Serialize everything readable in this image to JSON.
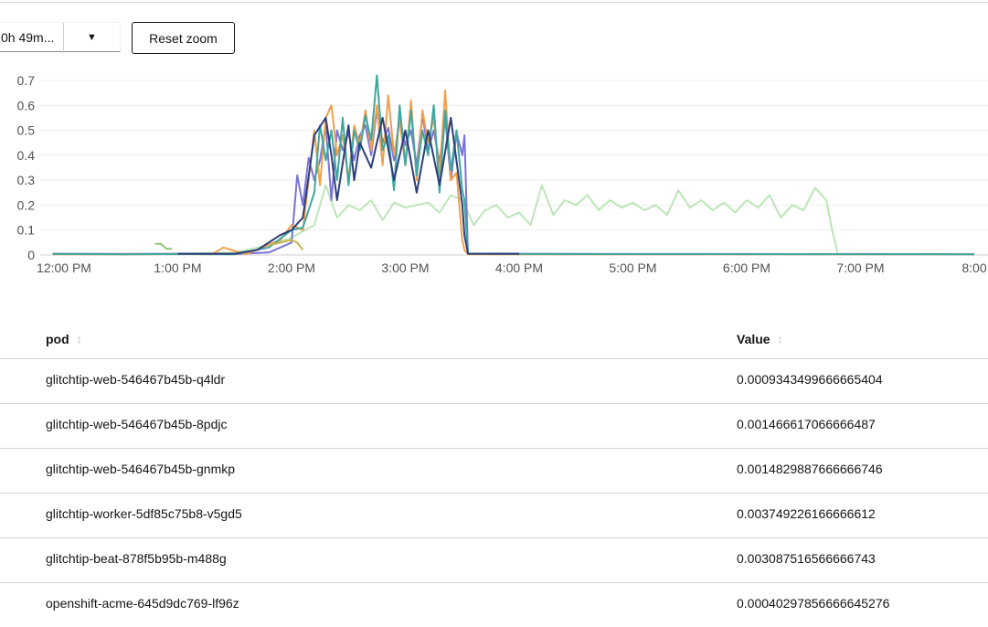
{
  "toolbar": {
    "range_value": "0h 49m...",
    "reset_zoom_label": "Reset zoom"
  },
  "chart_data": {
    "type": "line",
    "yticks": [
      "0",
      "0.1",
      "0.2",
      "0.3",
      "0.4",
      "0.5",
      "0.6",
      "0.7"
    ],
    "xticks": [
      "12:00 PM",
      "1:00 PM",
      "2:00 PM",
      "3:00 PM",
      "4:00 PM",
      "5:00 PM",
      "6:00 PM",
      "7:00 PM",
      "8:00"
    ],
    "ylim": [
      0,
      0.7
    ],
    "grid": true,
    "series": [
      {
        "color": "#bde5b8",
        "x": [
          11.9,
          12.5,
          13.0,
          13.5,
          13.8,
          14.0,
          14.2,
          14.3,
          14.4,
          14.5,
          14.6,
          14.7,
          14.8,
          14.9,
          15.0,
          15.1,
          15.2,
          15.3,
          15.4,
          15.5,
          15.6,
          15.7,
          15.8,
          15.9,
          16.0,
          16.1,
          16.2,
          16.3,
          16.4,
          16.5,
          16.6,
          16.7,
          16.8,
          16.9,
          17.0,
          17.1,
          17.2,
          17.3,
          17.4,
          17.5,
          17.6,
          17.7,
          17.8,
          17.9,
          18.0,
          18.1,
          18.2,
          18.3,
          18.4,
          18.5,
          18.6,
          18.7,
          18.75,
          18.8,
          19.0,
          20.0
        ],
        "y": [
          0.005,
          0.005,
          0.005,
          0.01,
          0.04,
          0.07,
          0.12,
          0.28,
          0.15,
          0.2,
          0.18,
          0.22,
          0.14,
          0.21,
          0.19,
          0.2,
          0.21,
          0.17,
          0.24,
          0.22,
          0.12,
          0.18,
          0.2,
          0.15,
          0.17,
          0.12,
          0.28,
          0.16,
          0.22,
          0.2,
          0.24,
          0.18,
          0.22,
          0.19,
          0.21,
          0.18,
          0.2,
          0.16,
          0.26,
          0.19,
          0.22,
          0.18,
          0.21,
          0.17,
          0.22,
          0.19,
          0.24,
          0.15,
          0.2,
          0.18,
          0.27,
          0.22,
          0.1,
          0.005,
          0.005,
          0.003
        ]
      },
      {
        "color": "#7b74d6",
        "x": [
          11.9,
          12.5,
          13.0,
          13.5,
          13.8,
          14.0,
          14.05,
          14.1,
          14.15,
          14.2,
          14.25,
          14.3,
          14.35,
          14.4,
          14.45,
          14.5,
          14.55,
          14.6,
          14.65,
          14.7,
          14.75,
          14.8,
          14.85,
          14.9,
          14.95,
          15.0,
          15.05,
          15.1,
          15.15,
          15.2,
          15.25,
          15.3,
          15.35,
          15.4,
          15.45,
          15.5,
          15.52,
          15.55,
          16.0,
          17.0,
          18.0,
          20.0
        ],
        "y": [
          0.005,
          0.004,
          0.005,
          0.004,
          0.01,
          0.05,
          0.32,
          0.2,
          0.39,
          0.3,
          0.38,
          0.52,
          0.22,
          0.5,
          0.42,
          0.49,
          0.38,
          0.48,
          0.52,
          0.4,
          0.58,
          0.45,
          0.51,
          0.38,
          0.55,
          0.44,
          0.5,
          0.36,
          0.56,
          0.42,
          0.5,
          0.37,
          0.55,
          0.3,
          0.49,
          0.4,
          0.48,
          0.006,
          0.005,
          0.004,
          0.004,
          0.003
        ]
      },
      {
        "color": "#f0a04b",
        "x": [
          11.9,
          12.5,
          13.0,
          13.3,
          13.4,
          13.6,
          13.9,
          14.0,
          14.1,
          14.2,
          14.25,
          14.3,
          14.35,
          14.4,
          14.45,
          14.5,
          14.55,
          14.6,
          14.65,
          14.7,
          14.75,
          14.8,
          14.85,
          14.9,
          14.95,
          15.0,
          15.05,
          15.1,
          15.15,
          15.2,
          15.25,
          15.3,
          15.35,
          15.4,
          15.45,
          15.5,
          15.52,
          15.55,
          16.0,
          18.0,
          20.0
        ],
        "y": [
          0.003,
          0.003,
          0.004,
          0.003,
          0.03,
          0.003,
          0.06,
          0.12,
          0.1,
          0.5,
          0.28,
          0.55,
          0.6,
          0.4,
          0.48,
          0.3,
          0.52,
          0.44,
          0.58,
          0.42,
          0.6,
          0.36,
          0.64,
          0.4,
          0.54,
          0.36,
          0.62,
          0.3,
          0.58,
          0.45,
          0.55,
          0.32,
          0.66,
          0.3,
          0.33,
          0.06,
          0.02,
          0.003,
          0.003,
          0.003,
          0.003
        ]
      },
      {
        "color": "#3fa7a0",
        "x": [
          11.9,
          12.5,
          13.0,
          13.5,
          13.8,
          14.0,
          14.1,
          14.2,
          14.25,
          14.3,
          14.35,
          14.4,
          14.45,
          14.5,
          14.55,
          14.6,
          14.65,
          14.7,
          14.75,
          14.8,
          14.85,
          14.9,
          14.95,
          15.0,
          15.05,
          15.1,
          15.15,
          15.2,
          15.25,
          15.3,
          15.35,
          15.4,
          15.45,
          15.5,
          15.52,
          15.55,
          15.7,
          16.0,
          20.0
        ],
        "y": [
          0.004,
          0.003,
          0.004,
          0.003,
          0.03,
          0.1,
          0.11,
          0.25,
          0.52,
          0.38,
          0.5,
          0.3,
          0.55,
          0.28,
          0.5,
          0.42,
          0.56,
          0.46,
          0.72,
          0.42,
          0.48,
          0.26,
          0.6,
          0.36,
          0.58,
          0.32,
          0.5,
          0.4,
          0.6,
          0.25,
          0.58,
          0.34,
          0.5,
          0.26,
          0.22,
          0.005,
          0.005,
          0.004,
          0.003
        ]
      },
      {
        "color": "#2d3e7a",
        "x": [
          13.0,
          13.5,
          13.7,
          13.8,
          13.9,
          14.0,
          14.1,
          14.2,
          14.3,
          14.35,
          14.4,
          14.5,
          14.55,
          14.6,
          14.7,
          14.8,
          14.9,
          15.0,
          15.1,
          15.2,
          15.3,
          15.4,
          15.5,
          15.52,
          15.55,
          16.0
        ],
        "y": [
          0.005,
          0.005,
          0.02,
          0.05,
          0.08,
          0.1,
          0.15,
          0.48,
          0.55,
          0.4,
          0.22,
          0.52,
          0.3,
          0.45,
          0.35,
          0.55,
          0.3,
          0.5,
          0.25,
          0.5,
          0.28,
          0.55,
          0.2,
          0.08,
          0.005,
          0.005
        ]
      },
      {
        "color": "#c7b44b",
        "x": [
          13.8,
          13.9,
          14.0,
          14.05,
          14.1
        ],
        "y": [
          0.04,
          0.05,
          0.06,
          0.05,
          0.02
        ]
      },
      {
        "color": "#8fc57c",
        "x": [
          12.8,
          12.85,
          12.9,
          12.95
        ],
        "y": [
          0.045,
          0.045,
          0.025,
          0.025
        ]
      }
    ]
  },
  "table": {
    "headers": {
      "pod": "pod",
      "value": "Value"
    },
    "rows": [
      {
        "pod": "glitchtip-web-546467b45b-q4ldr",
        "value": "0.0009343499666665404"
      },
      {
        "pod": "glitchtip-web-546467b45b-8pdjc",
        "value": "0.001466617066666487"
      },
      {
        "pod": "glitchtip-web-546467b45b-gnmkp",
        "value": "0.0014829887666666746"
      },
      {
        "pod": "glitchtip-worker-5df85c75b8-v5gd5",
        "value": "0.003749226166666612"
      },
      {
        "pod": "glitchtip-beat-878f5b95b-m488g",
        "value": "0.003087516566666743"
      },
      {
        "pod": "openshift-acme-645d9dc769-lf96z",
        "value": "0.00040297856666645276"
      }
    ]
  }
}
